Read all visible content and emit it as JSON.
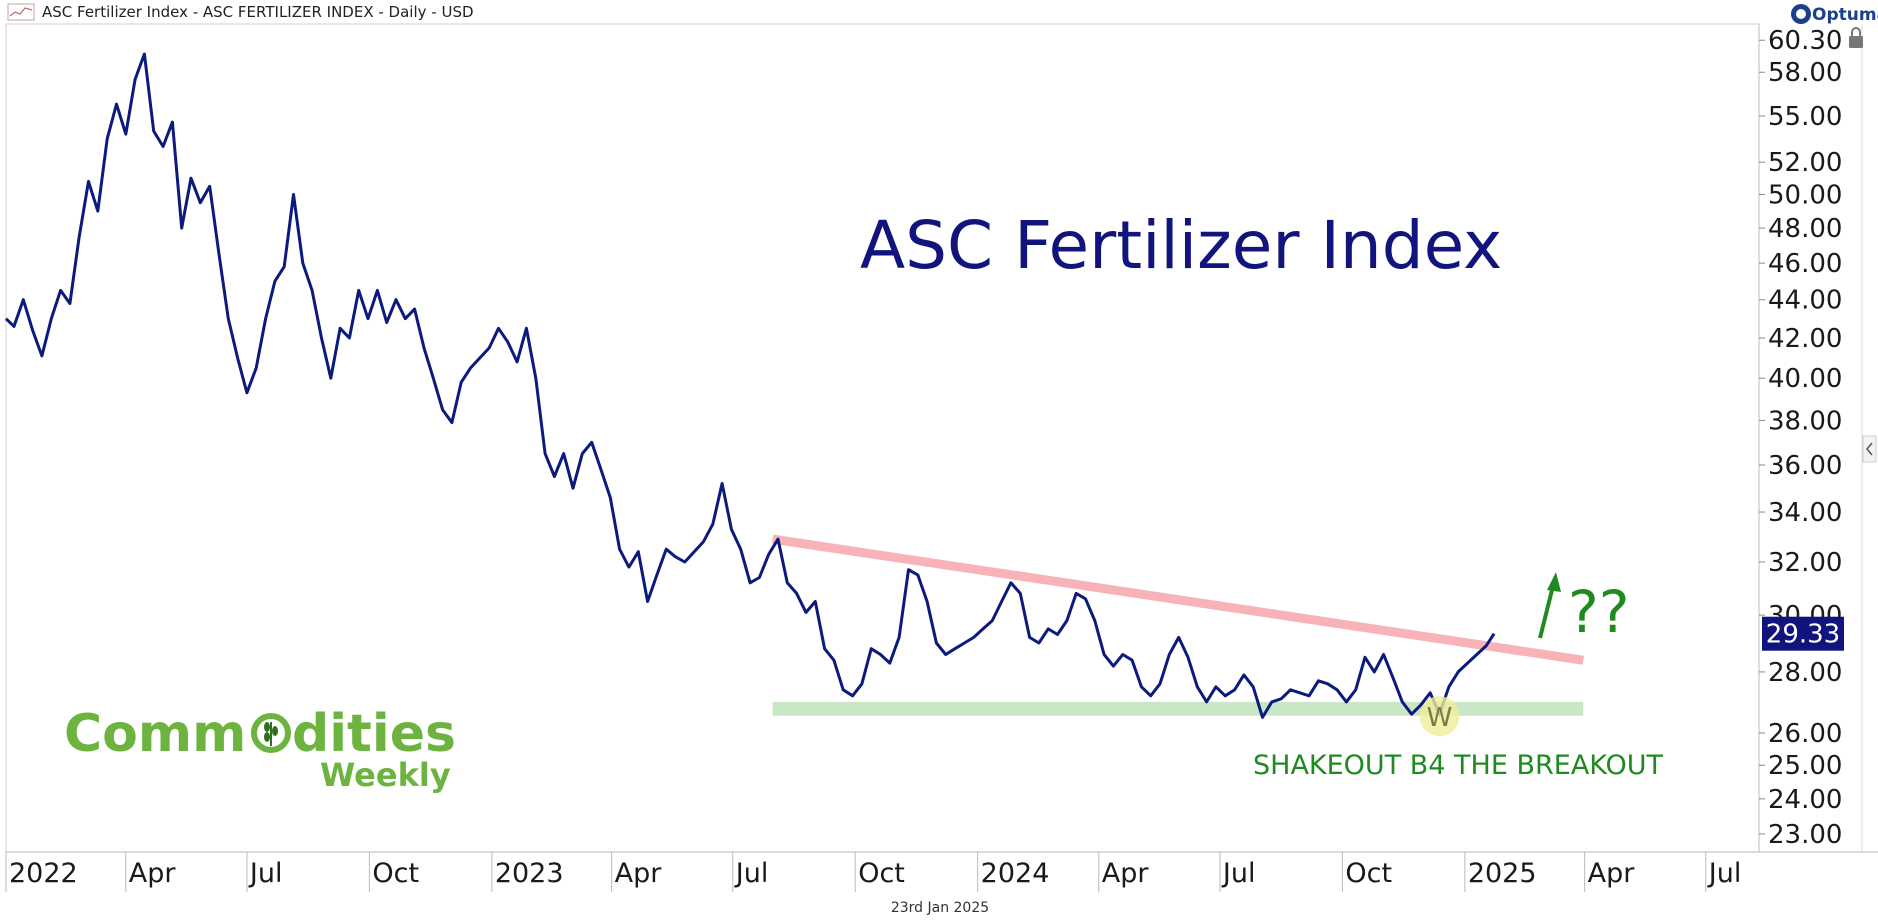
{
  "header": {
    "title": "ASC Fertilizer Index - ASC FERTILIZER INDEX - Daily - USD",
    "brand": "Optuma"
  },
  "footer": {
    "date": "23rd Jan 2025"
  },
  "logo": {
    "line1_a": "Comm",
    "line1_b": "dities",
    "line2": "Weekly"
  },
  "annotations": {
    "resistance_color": "#f7b3b8",
    "support_color": "#bfe3bc",
    "w_marker_color": "#f1ec9a",
    "w_letter": "W",
    "question": "??"
  },
  "chart_data": {
    "type": "line",
    "title": "ASC Fertilizer Index",
    "y_scale": "log",
    "ylim": [
      22.5,
      61.5
    ],
    "y_ticks": [
      "60.30",
      "58.00",
      "55.00",
      "52.00",
      "50.00",
      "48.00",
      "46.00",
      "44.00",
      "42.00",
      "40.00",
      "38.00",
      "36.00",
      "34.00",
      "32.00",
      "30.00",
      "28.00",
      "26.00",
      "25.00",
      "24.00",
      "23.00"
    ],
    "x_ticks": [
      {
        "label": "2022",
        "date": "2022-01-01"
      },
      {
        "label": "Apr",
        "date": "2022-04-01"
      },
      {
        "label": "Jul",
        "date": "2022-07-01"
      },
      {
        "label": "Oct",
        "date": "2022-10-01"
      },
      {
        "label": "2023",
        "date": "2023-01-01"
      },
      {
        "label": "Apr",
        "date": "2023-04-01"
      },
      {
        "label": "Jul",
        "date": "2023-07-01"
      },
      {
        "label": "Oct",
        "date": "2023-10-01"
      },
      {
        "label": "2024",
        "date": "2024-01-01"
      },
      {
        "label": "Apr",
        "date": "2024-04-01"
      },
      {
        "label": "Jul",
        "date": "2024-07-01"
      },
      {
        "label": "Oct",
        "date": "2024-10-01"
      },
      {
        "label": "2025",
        "date": "2025-01-01"
      },
      {
        "label": "Apr",
        "date": "2025-04-01"
      },
      {
        "label": "Jul",
        "date": "2025-07-01"
      }
    ],
    "xlim": [
      "2022-01-01",
      "2025-08-10"
    ],
    "last_price": "29.33",
    "series": [
      {
        "color": "#0d1a7d",
        "points": [
          [
            "2022-01-01",
            43.0
          ],
          [
            "2022-01-07",
            42.6
          ],
          [
            "2022-01-14",
            44.0
          ],
          [
            "2022-01-21",
            42.4
          ],
          [
            "2022-01-28",
            41.1
          ],
          [
            "2022-02-04",
            43.0
          ],
          [
            "2022-02-11",
            44.5
          ],
          [
            "2022-02-18",
            43.8
          ],
          [
            "2022-02-25",
            47.5
          ],
          [
            "2022-03-04",
            50.8
          ],
          [
            "2022-03-11",
            49.0
          ],
          [
            "2022-03-18",
            53.5
          ],
          [
            "2022-03-25",
            55.8
          ],
          [
            "2022-04-01",
            53.8
          ],
          [
            "2022-04-08",
            57.5
          ],
          [
            "2022-04-15",
            59.3
          ],
          [
            "2022-04-22",
            54.0
          ],
          [
            "2022-04-29",
            53.0
          ],
          [
            "2022-05-06",
            54.6
          ],
          [
            "2022-05-13",
            48.0
          ],
          [
            "2022-05-20",
            51.0
          ],
          [
            "2022-05-27",
            49.5
          ],
          [
            "2022-06-03",
            50.5
          ],
          [
            "2022-06-10",
            46.5
          ],
          [
            "2022-06-17",
            43.0
          ],
          [
            "2022-06-24",
            41.0
          ],
          [
            "2022-07-01",
            39.3
          ],
          [
            "2022-07-08",
            40.5
          ],
          [
            "2022-07-15",
            43.0
          ],
          [
            "2022-07-22",
            45.0
          ],
          [
            "2022-07-29",
            45.8
          ],
          [
            "2022-08-05",
            50.0
          ],
          [
            "2022-08-12",
            46.0
          ],
          [
            "2022-08-19",
            44.5
          ],
          [
            "2022-08-26",
            42.0
          ],
          [
            "2022-09-02",
            40.0
          ],
          [
            "2022-09-09",
            42.5
          ],
          [
            "2022-09-16",
            42.0
          ],
          [
            "2022-09-23",
            44.5
          ],
          [
            "2022-09-30",
            43.0
          ],
          [
            "2022-10-07",
            44.5
          ],
          [
            "2022-10-14",
            42.8
          ],
          [
            "2022-10-21",
            44.0
          ],
          [
            "2022-10-28",
            43.0
          ],
          [
            "2022-11-04",
            43.5
          ],
          [
            "2022-11-11",
            41.5
          ],
          [
            "2022-11-18",
            40.0
          ],
          [
            "2022-11-25",
            38.5
          ],
          [
            "2022-12-02",
            37.9
          ],
          [
            "2022-12-09",
            39.8
          ],
          [
            "2022-12-16",
            40.5
          ],
          [
            "2022-12-23",
            41.0
          ],
          [
            "2022-12-30",
            41.5
          ],
          [
            "2023-01-06",
            42.5
          ],
          [
            "2023-01-13",
            41.8
          ],
          [
            "2023-01-20",
            40.8
          ],
          [
            "2023-01-27",
            42.5
          ],
          [
            "2023-02-03",
            40.0
          ],
          [
            "2023-02-10",
            36.5
          ],
          [
            "2023-02-17",
            35.5
          ],
          [
            "2023-02-24",
            36.5
          ],
          [
            "2023-03-03",
            35.0
          ],
          [
            "2023-03-10",
            36.5
          ],
          [
            "2023-03-17",
            37.0
          ],
          [
            "2023-03-24",
            35.8
          ],
          [
            "2023-03-31",
            34.6
          ],
          [
            "2023-04-07",
            32.5
          ],
          [
            "2023-04-14",
            31.8
          ],
          [
            "2023-04-21",
            32.4
          ],
          [
            "2023-04-28",
            30.5
          ],
          [
            "2023-05-05",
            31.5
          ],
          [
            "2023-05-12",
            32.5
          ],
          [
            "2023-05-19",
            32.2
          ],
          [
            "2023-05-26",
            32.0
          ],
          [
            "2023-06-02",
            32.4
          ],
          [
            "2023-06-09",
            32.8
          ],
          [
            "2023-06-16",
            33.5
          ],
          [
            "2023-06-23",
            35.2
          ],
          [
            "2023-06-30",
            33.3
          ],
          [
            "2023-07-07",
            32.5
          ],
          [
            "2023-07-14",
            31.2
          ],
          [
            "2023-07-21",
            31.4
          ],
          [
            "2023-07-28",
            32.3
          ],
          [
            "2023-08-04",
            32.9
          ],
          [
            "2023-08-11",
            31.2
          ],
          [
            "2023-08-18",
            30.8
          ],
          [
            "2023-08-25",
            30.1
          ],
          [
            "2023-09-01",
            30.5
          ],
          [
            "2023-09-08",
            28.8
          ],
          [
            "2023-09-15",
            28.4
          ],
          [
            "2023-09-22",
            27.4
          ],
          [
            "2023-09-29",
            27.2
          ],
          [
            "2023-10-06",
            27.6
          ],
          [
            "2023-10-13",
            28.8
          ],
          [
            "2023-10-20",
            28.6
          ],
          [
            "2023-10-27",
            28.3
          ],
          [
            "2023-11-03",
            29.2
          ],
          [
            "2023-11-10",
            31.7
          ],
          [
            "2023-11-17",
            31.5
          ],
          [
            "2023-11-24",
            30.5
          ],
          [
            "2023-12-01",
            29.0
          ],
          [
            "2023-12-08",
            28.6
          ],
          [
            "2023-12-15",
            28.8
          ],
          [
            "2023-12-22",
            29.0
          ],
          [
            "2023-12-29",
            29.2
          ],
          [
            "2024-01-05",
            29.5
          ],
          [
            "2024-01-12",
            29.8
          ],
          [
            "2024-01-19",
            30.5
          ],
          [
            "2024-01-26",
            31.2
          ],
          [
            "2024-02-02",
            30.8
          ],
          [
            "2024-02-09",
            29.2
          ],
          [
            "2024-02-16",
            29.0
          ],
          [
            "2024-02-23",
            29.5
          ],
          [
            "2024-03-01",
            29.3
          ],
          [
            "2024-03-08",
            29.8
          ],
          [
            "2024-03-15",
            30.8
          ],
          [
            "2024-03-22",
            30.6
          ],
          [
            "2024-03-29",
            29.8
          ],
          [
            "2024-04-05",
            28.6
          ],
          [
            "2024-04-12",
            28.2
          ],
          [
            "2024-04-19",
            28.6
          ],
          [
            "2024-04-26",
            28.4
          ],
          [
            "2024-05-03",
            27.5
          ],
          [
            "2024-05-10",
            27.2
          ],
          [
            "2024-05-17",
            27.6
          ],
          [
            "2024-05-24",
            28.6
          ],
          [
            "2024-05-31",
            29.2
          ],
          [
            "2024-06-07",
            28.5
          ],
          [
            "2024-06-14",
            27.5
          ],
          [
            "2024-06-21",
            27.0
          ],
          [
            "2024-06-28",
            27.5
          ],
          [
            "2024-07-05",
            27.2
          ],
          [
            "2024-07-12",
            27.4
          ],
          [
            "2024-07-19",
            27.9
          ],
          [
            "2024-07-26",
            27.5
          ],
          [
            "2024-08-02",
            26.5
          ],
          [
            "2024-08-09",
            27.0
          ],
          [
            "2024-08-16",
            27.1
          ],
          [
            "2024-08-23",
            27.4
          ],
          [
            "2024-08-30",
            27.3
          ],
          [
            "2024-09-06",
            27.2
          ],
          [
            "2024-09-13",
            27.7
          ],
          [
            "2024-09-20",
            27.6
          ],
          [
            "2024-09-27",
            27.4
          ],
          [
            "2024-10-04",
            27.0
          ],
          [
            "2024-10-11",
            27.4
          ],
          [
            "2024-10-18",
            28.5
          ],
          [
            "2024-10-25",
            28.0
          ],
          [
            "2024-11-01",
            28.6
          ],
          [
            "2024-11-08",
            27.8
          ],
          [
            "2024-11-15",
            27.0
          ],
          [
            "2024-11-22",
            26.6
          ],
          [
            "2024-11-29",
            26.9
          ],
          [
            "2024-12-06",
            27.3
          ],
          [
            "2024-12-13",
            26.6
          ],
          [
            "2024-12-20",
            27.5
          ],
          [
            "2024-12-27",
            28.0
          ],
          [
            "2025-01-03",
            28.3
          ],
          [
            "2025-01-10",
            28.6
          ],
          [
            "2025-01-17",
            28.9
          ],
          [
            "2025-01-23",
            29.33
          ]
        ]
      }
    ],
    "resistance_line": [
      [
        "2023-07-31",
        32.9
      ],
      [
        "2025-03-31",
        28.4
      ]
    ],
    "support_zone": {
      "from": "2023-07-31",
      "to": "2025-03-31",
      "low": 26.55,
      "high": 27.0
    },
    "annotation_text": "SHAKEOUT B4 THE BREAKOUT"
  }
}
